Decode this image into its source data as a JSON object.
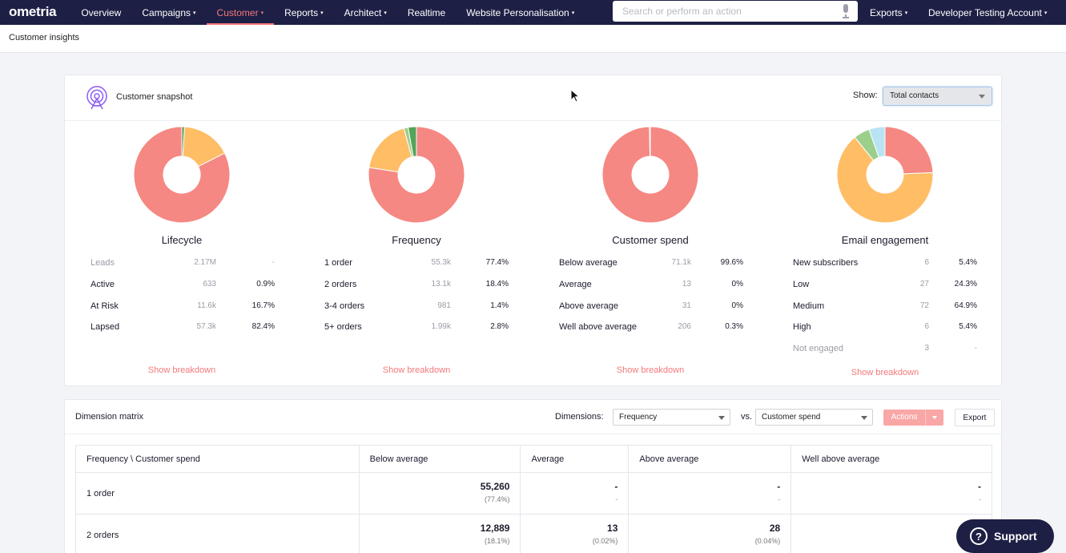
{
  "nav": {
    "logo": "ometria",
    "items": [
      {
        "label": "Overview",
        "dropdown": false,
        "active": false
      },
      {
        "label": "Campaigns",
        "dropdown": true,
        "active": false
      },
      {
        "label": "Customer",
        "dropdown": true,
        "active": true
      },
      {
        "label": "Reports",
        "dropdown": true,
        "active": false
      },
      {
        "label": "Architect",
        "dropdown": true,
        "active": false
      },
      {
        "label": "Realtime",
        "dropdown": false,
        "active": false
      },
      {
        "label": "Website Personalisation",
        "dropdown": true,
        "active": false
      }
    ],
    "search_placeholder": "Search or perform an action",
    "exports_label": "Exports",
    "account_label": "Developer Testing Account",
    "caret": "▾"
  },
  "breadcrumb": "Customer insights",
  "snapshot": {
    "title": "Customer snapshot",
    "show_label": "Show:",
    "show_value": "Total contacts",
    "breakdown_label": "Show breakdown",
    "panels": [
      {
        "title": "Lifecycle",
        "rows": [
          {
            "label": "Leads",
            "count": "2.17M",
            "pct": "-",
            "muted": true
          },
          {
            "label": "Active",
            "count": "633",
            "pct": "0.9%",
            "muted": false
          },
          {
            "label": "At Risk",
            "count": "11.6k",
            "pct": "16.7%",
            "muted": false
          },
          {
            "label": "Lapsed",
            "count": "57.3k",
            "pct": "82.4%",
            "muted": false
          }
        ]
      },
      {
        "title": "Frequency",
        "rows": [
          {
            "label": "1 order",
            "count": "55.3k",
            "pct": "77.4%",
            "muted": false
          },
          {
            "label": "2 orders",
            "count": "13.1k",
            "pct": "18.4%",
            "muted": false
          },
          {
            "label": "3-4 orders",
            "count": "981",
            "pct": "1.4%",
            "muted": false
          },
          {
            "label": "5+ orders",
            "count": "1.99k",
            "pct": "2.8%",
            "muted": false
          }
        ]
      },
      {
        "title": "Customer spend",
        "rows": [
          {
            "label": "Below average",
            "count": "71.1k",
            "pct": "99.6%",
            "muted": false
          },
          {
            "label": "Average",
            "count": "13",
            "pct": "0%",
            "muted": false
          },
          {
            "label": "Above average",
            "count": "31",
            "pct": "0%",
            "muted": false
          },
          {
            "label": "Well above average",
            "count": "206",
            "pct": "0.3%",
            "muted": false
          }
        ]
      },
      {
        "title": "Email engagement",
        "rows": [
          {
            "label": "New subscribers",
            "count": "6",
            "pct": "5.4%",
            "muted": false
          },
          {
            "label": "Low",
            "count": "27",
            "pct": "24.3%",
            "muted": false
          },
          {
            "label": "Medium",
            "count": "72",
            "pct": "64.9%",
            "muted": false
          },
          {
            "label": "High",
            "count": "6",
            "pct": "5.4%",
            "muted": false
          },
          {
            "label": "Not engaged",
            "count": "3",
            "pct": "-",
            "muted": true
          }
        ]
      }
    ]
  },
  "chart_data": [
    {
      "type": "pie",
      "categories": [
        "Active",
        "At Risk",
        "Lapsed"
      ],
      "values": [
        0.9,
        16.7,
        82.4
      ],
      "colors": [
        "#4f9b57",
        "#ffbd66",
        "#f58883"
      ]
    },
    {
      "type": "pie",
      "categories": [
        "1 order",
        "2 orders",
        "3-4 orders",
        "5+ orders"
      ],
      "values": [
        77.4,
        18.4,
        1.4,
        2.8
      ],
      "colors": [
        "#f58883",
        "#ffbd66",
        "#9bcf8b",
        "#56a35a"
      ]
    },
    {
      "type": "pie",
      "categories": [
        "Below average",
        "Average",
        "Above average",
        "Well above average"
      ],
      "values": [
        99.6,
        0,
        0,
        0.3
      ],
      "colors": [
        "#f58883",
        "#ffbd66",
        "#9bcf8b",
        "#b8dff0"
      ]
    },
    {
      "type": "pie",
      "categories": [
        "Low",
        "Medium",
        "High",
        "New subscribers"
      ],
      "values": [
        24.3,
        64.9,
        5.4,
        5.4
      ],
      "colors": [
        "#f58883",
        "#ffbd66",
        "#9bcf8b",
        "#b8e3f3"
      ]
    }
  ],
  "matrix": {
    "title": "Dimension matrix",
    "dimensions_label": "Dimensions:",
    "dim1": "Frequency",
    "vs_label": "vs.",
    "dim2": "Customer spend",
    "actions_label": "Actions",
    "export_label": "Export",
    "columns": [
      "Frequency \\ Customer spend",
      "Below average",
      "Average",
      "Above average",
      "Well above average"
    ],
    "rows": [
      {
        "label": "1 order",
        "cells": [
          {
            "v": "55,260",
            "p": "(77.4%)"
          },
          {
            "v": "-",
            "p": "-"
          },
          {
            "v": "-",
            "p": "-"
          },
          {
            "v": "-",
            "p": "-"
          }
        ]
      },
      {
        "label": "2 orders",
        "cells": [
          {
            "v": "12,889",
            "p": "(18.1%)"
          },
          {
            "v": "13",
            "p": "(0.02%)"
          },
          {
            "v": "28",
            "p": "(0.04%)"
          },
          {
            "v": "",
            "p": ""
          }
        ]
      }
    ]
  },
  "support_label": "Support",
  "colors": {
    "nav_bg": "#1d1f45",
    "accent": "#f4787a",
    "pink": "#f58883",
    "orange": "#ffbd66",
    "green": "#4f9b57"
  }
}
